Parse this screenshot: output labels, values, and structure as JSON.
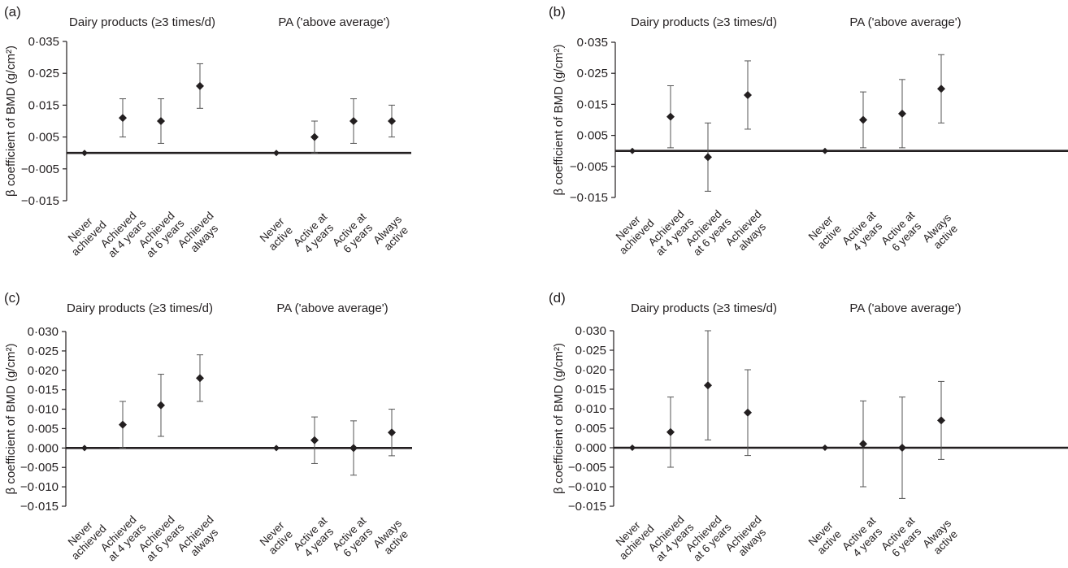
{
  "chart_data": [
    {
      "type": "scatter",
      "panel_label": "(a)",
      "ylabel": "β coefficient of BMD (g/cm²)",
      "ylim": [
        -0.015,
        0.035
      ],
      "yticks": [
        0.035,
        0.025,
        0.015,
        0.005,
        -0.005,
        -0.015
      ],
      "ytick_labels": [
        "0·035",
        "0·025",
        "0·015",
        "0·005",
        "−0·005",
        "−0·015"
      ],
      "reference_line": 0,
      "grid": false,
      "groups": [
        {
          "title": "Dairy products (≥3 times/d)",
          "points": [
            {
              "category": [
                "Never",
                "achieved"
              ],
              "value": 0.0,
              "lower": 0.0,
              "upper": 0.0
            },
            {
              "category": [
                "Achieved",
                "at 4 years"
              ],
              "value": 0.011,
              "lower": 0.005,
              "upper": 0.017
            },
            {
              "category": [
                "Achieved",
                "at 6 years"
              ],
              "value": 0.01,
              "lower": 0.003,
              "upper": 0.017
            },
            {
              "category": [
                "Achieved",
                "always"
              ],
              "value": 0.021,
              "lower": 0.014,
              "upper": 0.028
            }
          ]
        },
        {
          "title": "PA ('above average')",
          "points": [
            {
              "category": [
                "Never",
                "active"
              ],
              "value": 0.0,
              "lower": 0.0,
              "upper": 0.0
            },
            {
              "category": [
                "Active at",
                "4 years"
              ],
              "value": 0.005,
              "lower": 0.0,
              "upper": 0.01
            },
            {
              "category": [
                "Active at",
                "6 years"
              ],
              "value": 0.01,
              "lower": 0.003,
              "upper": 0.017
            },
            {
              "category": [
                "Always",
                "active"
              ],
              "value": 0.01,
              "lower": 0.005,
              "upper": 0.015
            }
          ]
        }
      ]
    },
    {
      "type": "scatter",
      "panel_label": "(b)",
      "ylabel": "β coefficient of BMD (g/cm²)",
      "ylim": [
        -0.015,
        0.035
      ],
      "yticks": [
        0.035,
        0.025,
        0.015,
        0.005,
        -0.005,
        -0.015
      ],
      "ytick_labels": [
        "0·035",
        "0·025",
        "0·015",
        "0·005",
        "−0·005",
        "−0·015"
      ],
      "reference_line": 0,
      "grid": false,
      "groups": [
        {
          "title": "Dairy products (≥3 times/d)",
          "points": [
            {
              "category": [
                "Never",
                "achieved"
              ],
              "value": 0.0,
              "lower": 0.0,
              "upper": 0.0
            },
            {
              "category": [
                "Achieved",
                "at 4 years"
              ],
              "value": 0.011,
              "lower": 0.001,
              "upper": 0.021
            },
            {
              "category": [
                "Achieved",
                "at 6 years"
              ],
              "value": -0.002,
              "lower": -0.013,
              "upper": 0.009
            },
            {
              "category": [
                "Achieved",
                "always"
              ],
              "value": 0.018,
              "lower": 0.007,
              "upper": 0.029
            }
          ]
        },
        {
          "title": "PA ('above average')",
          "points": [
            {
              "category": [
                "Never",
                "active"
              ],
              "value": 0.0,
              "lower": 0.0,
              "upper": 0.0
            },
            {
              "category": [
                "Active at",
                "4 years"
              ],
              "value": 0.01,
              "lower": 0.001,
              "upper": 0.019
            },
            {
              "category": [
                "Active at",
                "6 years"
              ],
              "value": 0.012,
              "lower": 0.001,
              "upper": 0.023
            },
            {
              "category": [
                "Always",
                "active"
              ],
              "value": 0.02,
              "lower": 0.009,
              "upper": 0.031
            }
          ]
        }
      ]
    },
    {
      "type": "scatter",
      "panel_label": "(c)",
      "ylabel": "β coefficient of BMD (g/cm²)",
      "ylim": [
        -0.015,
        0.03
      ],
      "yticks": [
        0.03,
        0.025,
        0.02,
        0.015,
        0.01,
        0.005,
        0.0,
        -0.005,
        -0.01,
        -0.015
      ],
      "ytick_labels": [
        "0·030",
        "0·025",
        "0·020",
        "0·015",
        "0·010",
        "0·005",
        "0·000",
        "−0·005",
        "−0·010",
        "−0·015"
      ],
      "reference_line": 0,
      "grid": false,
      "groups": [
        {
          "title": "Dairy products (≥3 times/d)",
          "points": [
            {
              "category": [
                "Never",
                "achieved"
              ],
              "value": 0.0,
              "lower": 0.0,
              "upper": 0.0
            },
            {
              "category": [
                "Achieved",
                "at 4 years"
              ],
              "value": 0.006,
              "lower": 0.0,
              "upper": 0.012
            },
            {
              "category": [
                "Achieved",
                "at 6 years"
              ],
              "value": 0.011,
              "lower": 0.003,
              "upper": 0.019
            },
            {
              "category": [
                "Achieved",
                "always"
              ],
              "value": 0.018,
              "lower": 0.012,
              "upper": 0.024
            }
          ]
        },
        {
          "title": "PA ('above average')",
          "points": [
            {
              "category": [
                "Never",
                "active"
              ],
              "value": 0.0,
              "lower": 0.0,
              "upper": 0.0
            },
            {
              "category": [
                "Active at",
                "4 years"
              ],
              "value": 0.002,
              "lower": -0.004,
              "upper": 0.008
            },
            {
              "category": [
                "Active at",
                "6 years"
              ],
              "value": 0.0,
              "lower": -0.007,
              "upper": 0.007
            },
            {
              "category": [
                "Always",
                "active"
              ],
              "value": 0.004,
              "lower": -0.002,
              "upper": 0.01
            }
          ]
        }
      ]
    },
    {
      "type": "scatter",
      "panel_label": "(d)",
      "ylabel": "β coefficient of BMD (g/cm²)",
      "ylim": [
        -0.015,
        0.03
      ],
      "yticks": [
        0.03,
        0.025,
        0.02,
        0.015,
        0.01,
        0.005,
        0.0,
        -0.005,
        -0.01,
        -0.015
      ],
      "ytick_labels": [
        "0·030",
        "0·025",
        "0·020",
        "0·015",
        "0·010",
        "0·005",
        "0·000",
        "−0·005",
        "−0·010",
        "−0·015"
      ],
      "reference_line": 0,
      "grid": false,
      "groups": [
        {
          "title": "Dairy products (≥3 times/d)",
          "points": [
            {
              "category": [
                "Never",
                "achieved"
              ],
              "value": 0.0,
              "lower": 0.0,
              "upper": 0.0
            },
            {
              "category": [
                "Achieved",
                "at 4 years"
              ],
              "value": 0.004,
              "lower": -0.005,
              "upper": 0.013
            },
            {
              "category": [
                "Achieved",
                "at 6 years"
              ],
              "value": 0.016,
              "lower": 0.002,
              "upper": 0.03
            },
            {
              "category": [
                "Achieved",
                "always"
              ],
              "value": 0.009,
              "lower": -0.002,
              "upper": 0.02
            }
          ]
        },
        {
          "title": "PA ('above average')",
          "points": [
            {
              "category": [
                "Never",
                "active"
              ],
              "value": 0.0,
              "lower": 0.0,
              "upper": 0.0
            },
            {
              "category": [
                "Active at",
                "4 years"
              ],
              "value": 0.001,
              "lower": -0.01,
              "upper": 0.012
            },
            {
              "category": [
                "Active at",
                "6 years"
              ],
              "value": 0.0,
              "lower": -0.013,
              "upper": 0.013
            },
            {
              "category": [
                "Always",
                "active"
              ],
              "value": 0.007,
              "lower": -0.003,
              "upper": 0.017
            }
          ]
        }
      ]
    }
  ],
  "colors": {
    "marker": "#231f20",
    "errorbar": "#555555",
    "axis": "#231f20"
  }
}
